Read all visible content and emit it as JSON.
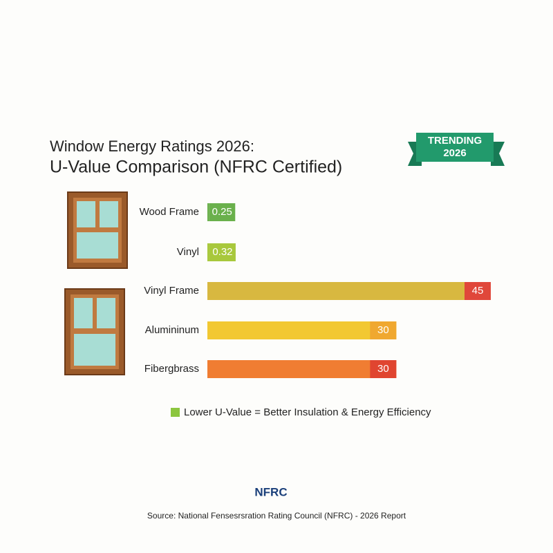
{
  "chart_data": {
    "type": "hbar",
    "title": "Window Energy Ratings 2026:",
    "subtitle": "U-Value Comparison (NFRC Certified)",
    "badge": [
      "TRENDING",
      "2026"
    ],
    "categories": [
      "Wood Frame",
      "Vinyl",
      "Vinyl Frame",
      "Alumininum",
      "Fibergbrass"
    ],
    "values": [
      0.25,
      0.32,
      45,
      30,
      30
    ],
    "colors": [
      "#6ab04c",
      "#a8c83c",
      "#d8b840",
      "#f2c832",
      "#f07d32"
    ],
    "label_colors": [
      "#6ab04c",
      "#a8c83c",
      "#e0473a",
      "#f0a830",
      "#e04530"
    ],
    "legend": {
      "label": "Lower U-Value = Better Insulation & Energy Efficiency",
      "color": "#8cc63f"
    },
    "logo": "NFRC",
    "source": "Source: National Fensesrsration Rating Council (NFRC) - 2026 Report"
  }
}
